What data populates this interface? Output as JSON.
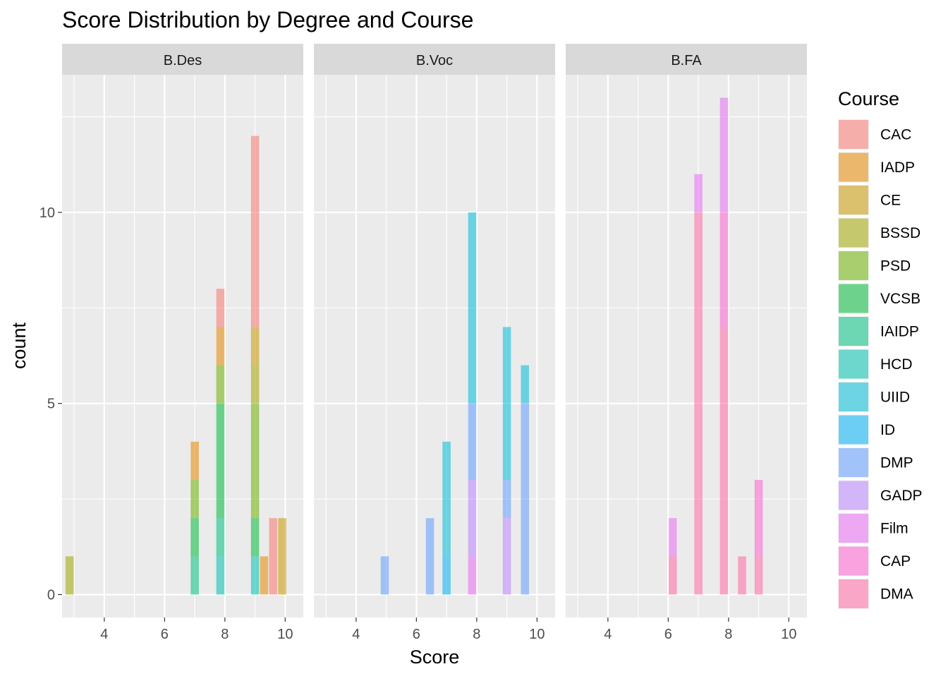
{
  "chart_data": {
    "type": "histogram",
    "title": "Score Distribution by Degree and Course",
    "xlabel": "Score",
    "ylabel": "count",
    "xlim": [
      2.6,
      10.6
    ],
    "ylim": [
      -0.6,
      13.6
    ],
    "x_ticks": [
      4,
      6,
      8,
      10
    ],
    "y_ticks": [
      0,
      5,
      10
    ],
    "bin_width": 0.27,
    "stacked": true,
    "grid": true,
    "legend": {
      "title": "Course",
      "placement": "right",
      "items": [
        {
          "name": "CAC",
          "color": "#F8766D"
        },
        {
          "name": "IADP",
          "color": "#E58700"
        },
        {
          "name": "CE",
          "color": "#C99800"
        },
        {
          "name": "BSSD",
          "color": "#A3A500"
        },
        {
          "name": "PSD",
          "color": "#6BB100"
        },
        {
          "name": "VCSB",
          "color": "#00BA38"
        },
        {
          "name": "IAIDP",
          "color": "#00BF7D"
        },
        {
          "name": "HCD",
          "color": "#00C0AF"
        },
        {
          "name": "UIID",
          "color": "#00BCD8"
        },
        {
          "name": "ID",
          "color": "#00B0F6"
        },
        {
          "name": "DMP",
          "color": "#619CFF"
        },
        {
          "name": "GADP",
          "color": "#B983FF"
        },
        {
          "name": "Film",
          "color": "#E76BF3"
        },
        {
          "name": "CAP",
          "color": "#FD61D1"
        },
        {
          "name": "DMA",
          "color": "#FF67A4"
        }
      ]
    },
    "facets": [
      {
        "label": "B.Des",
        "bars": [
          {
            "x": 2.85,
            "stack": [
              {
                "course": "BSSD",
                "count": 1
              }
            ]
          },
          {
            "x": 7.0,
            "stack": [
              {
                "course": "IAIDP",
                "count": 1
              },
              {
                "course": "VCSB",
                "count": 1
              },
              {
                "course": "PSD",
                "count": 1
              },
              {
                "course": "IADP",
                "count": 1
              }
            ]
          },
          {
            "x": 7.85,
            "stack": [
              {
                "course": "HCD",
                "count": 1
              },
              {
                "course": "IAIDP",
                "count": 1
              },
              {
                "course": "VCSB",
                "count": 3
              },
              {
                "course": "PSD",
                "count": 1
              },
              {
                "course": "IADP",
                "count": 1
              },
              {
                "course": "CAC",
                "count": 1
              }
            ]
          },
          {
            "x": 9.0,
            "stack": [
              {
                "course": "HCD",
                "count": 1
              },
              {
                "course": "VCSB",
                "count": 1
              },
              {
                "course": "PSD",
                "count": 3
              },
              {
                "course": "BSSD",
                "count": 1
              },
              {
                "course": "CE",
                "count": 1
              },
              {
                "course": "CAC",
                "count": 5
              }
            ]
          },
          {
            "x": 9.3,
            "stack": [
              {
                "course": "IADP",
                "count": 1
              }
            ]
          },
          {
            "x": 9.6,
            "stack": [
              {
                "course": "CAC",
                "count": 2
              }
            ]
          },
          {
            "x": 9.9,
            "stack": [
              {
                "course": "CE",
                "count": 2
              }
            ]
          }
        ]
      },
      {
        "label": "B.Voc",
        "bars": [
          {
            "x": 4.95,
            "stack": [
              {
                "course": "DMP",
                "count": 1
              }
            ]
          },
          {
            "x": 6.45,
            "stack": [
              {
                "course": "DMP",
                "count": 2
              }
            ]
          },
          {
            "x": 7.0,
            "stack": [
              {
                "course": "ID",
                "count": 1
              },
              {
                "course": "UIID",
                "count": 3
              }
            ]
          },
          {
            "x": 7.85,
            "stack": [
              {
                "course": "Film",
                "count": 1
              },
              {
                "course": "GADP",
                "count": 2
              },
              {
                "course": "DMP",
                "count": 2
              },
              {
                "course": "UIID",
                "count": 5
              }
            ]
          },
          {
            "x": 9.0,
            "stack": [
              {
                "course": "GADP",
                "count": 2
              },
              {
                "course": "DMP",
                "count": 1
              },
              {
                "course": "UIID",
                "count": 4
              }
            ]
          },
          {
            "x": 9.6,
            "stack": [
              {
                "course": "DMP",
                "count": 5
              },
              {
                "course": "UIID",
                "count": 1
              }
            ]
          }
        ]
      },
      {
        "label": "B.FA",
        "bars": [
          {
            "x": 6.15,
            "stack": [
              {
                "course": "DMA",
                "count": 1
              },
              {
                "course": "Film",
                "count": 1
              }
            ]
          },
          {
            "x": 7.0,
            "stack": [
              {
                "course": "DMA",
                "count": 10
              },
              {
                "course": "Film",
                "count": 1
              }
            ]
          },
          {
            "x": 7.85,
            "stack": [
              {
                "course": "DMA",
                "count": 7
              },
              {
                "course": "CAP",
                "count": 3
              },
              {
                "course": "Film",
                "count": 3
              }
            ]
          },
          {
            "x": 8.45,
            "stack": [
              {
                "course": "DMA",
                "count": 1
              }
            ]
          },
          {
            "x": 9.0,
            "stack": [
              {
                "course": "DMA",
                "count": 1
              },
              {
                "course": "CAP",
                "count": 2
              }
            ]
          }
        ]
      }
    ]
  }
}
